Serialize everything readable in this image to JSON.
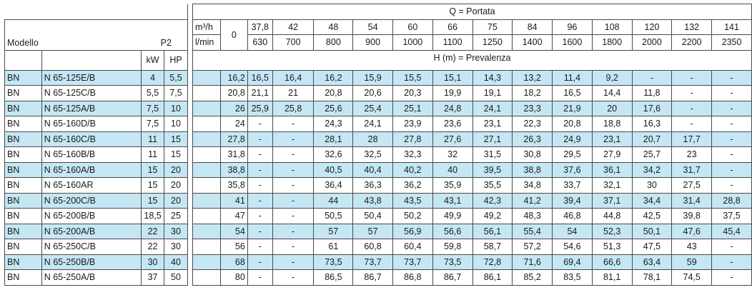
{
  "header": {
    "q_label": "Q = Portata",
    "h_label": "H (m) = Prevalenza",
    "model_label": "Modello",
    "p2_label": "P2",
    "unit_m3h": "m³/h",
    "unit_lmin": "l/min",
    "kw_label": "kW",
    "hp_label": "HP",
    "zero": "0",
    "flow_m3h": [
      "37,8",
      "42",
      "48",
      "54",
      "60",
      "66",
      "75",
      "84",
      "96",
      "108",
      "120",
      "132",
      "141"
    ],
    "flow_lmin": [
      "630",
      "700",
      "800",
      "900",
      "1000",
      "1100",
      "1250",
      "1400",
      "1600",
      "1800",
      "2000",
      "2200",
      "2350"
    ]
  },
  "rows": [
    {
      "series": "BN",
      "model": "N 65-125E/B",
      "kw": "4",
      "hp": "5,5",
      "h0": "16,2",
      "h": [
        "16,5",
        "16,4",
        "16,2",
        "15,9",
        "15,5",
        "15,1",
        "14,3",
        "13,2",
        "11,4",
        "9,2",
        "-",
        "-",
        "-"
      ]
    },
    {
      "series": "BN",
      "model": "N 65-125C/B",
      "kw": "5,5",
      "hp": "7,5",
      "h0": "20,8",
      "h": [
        "21,1",
        "21",
        "20,8",
        "20,6",
        "20,3",
        "19,9",
        "19,1",
        "18,2",
        "16,5",
        "14,4",
        "11,8",
        "-",
        "-"
      ]
    },
    {
      "series": "BN",
      "model": "N 65-125A/B",
      "kw": "7,5",
      "hp": "10",
      "h0": "26",
      "h": [
        "25,9",
        "25,8",
        "25,6",
        "25,4",
        "25,1",
        "24,8",
        "24,1",
        "23,3",
        "21,9",
        "20",
        "17,6",
        "-",
        "-"
      ]
    },
    {
      "series": "BN",
      "model": "N 65-160D/B",
      "kw": "7,5",
      "hp": "10",
      "h0": "24",
      "h": [
        "-",
        "-",
        "24,3",
        "24,1",
        "23,9",
        "23,6",
        "23,1",
        "22,3",
        "20,8",
        "18,8",
        "16,3",
        "-",
        "-"
      ]
    },
    {
      "series": "BN",
      "model": "N 65-160C/B",
      "kw": "11",
      "hp": "15",
      "h0": "27,8",
      "h": [
        "-",
        "-",
        "28,1",
        "28",
        "27,8",
        "27,6",
        "27,1",
        "26,3",
        "24,9",
        "23,1",
        "20,7",
        "17,7",
        "-"
      ]
    },
    {
      "series": "BN",
      "model": "N 65-160B/B",
      "kw": "11",
      "hp": "15",
      "h0": "31,8",
      "h": [
        "-",
        "-",
        "32,6",
        "32,5",
        "32,3",
        "32",
        "31,5",
        "30,8",
        "29,5",
        "27,9",
        "25,7",
        "23",
        "-"
      ]
    },
    {
      "series": "BN",
      "model": "N 65-160A/B",
      "kw": "15",
      "hp": "20",
      "h0": "38,8",
      "h": [
        "-",
        "-",
        "40,5",
        "40,4",
        "40,2",
        "40",
        "39,5",
        "38,8",
        "37,6",
        "36,1",
        "34,2",
        "31,7",
        "-"
      ]
    },
    {
      "series": "BN",
      "model": "N 65-160AR",
      "kw": "15",
      "hp": "20",
      "h0": "35,8",
      "h": [
        "-",
        "-",
        "36,4",
        "36,3",
        "36,2",
        "35,9",
        "35,5",
        "34,8",
        "33,7",
        "32,1",
        "30",
        "27,5",
        "-"
      ]
    },
    {
      "series": "BN",
      "model": "N 65-200C/B",
      "kw": "15",
      "hp": "20",
      "h0": "41",
      "h": [
        "-",
        "-",
        "44",
        "43,8",
        "43,5",
        "43,1",
        "42,3",
        "41,2",
        "39,4",
        "37,1",
        "34,4",
        "31,4",
        "28,8"
      ]
    },
    {
      "series": "BN",
      "model": "N 65-200B/B",
      "kw": "18,5",
      "hp": "25",
      "h0": "47",
      "h": [
        "-",
        "-",
        "50,5",
        "50,4",
        "50,2",
        "49,9",
        "49,2",
        "48,3",
        "46,8",
        "44,8",
        "42,5",
        "39,8",
        "37,5"
      ]
    },
    {
      "series": "BN",
      "model": "N 65-200A/B",
      "kw": "22",
      "hp": "30",
      "h0": "54",
      "h": [
        "-",
        "-",
        "57",
        "57",
        "56,9",
        "56,6",
        "56,1",
        "55,4",
        "54",
        "52,3",
        "50,1",
        "47,6",
        "45,4"
      ]
    },
    {
      "series": "BN",
      "model": "N 65-250C/B",
      "kw": "22",
      "hp": "30",
      "h0": "56",
      "h": [
        "-",
        "-",
        "61",
        "60,8",
        "60,4",
        "59,8",
        "58,7",
        "57,2",
        "54,6",
        "51,3",
        "47,5",
        "43",
        "-"
      ]
    },
    {
      "series": "BN",
      "model": "N 65-250B/B",
      "kw": "30",
      "hp": "40",
      "h0": "68",
      "h": [
        "-",
        "-",
        "73,5",
        "73,7",
        "73,7",
        "73,5",
        "72,8",
        "71,6",
        "69,4",
        "66,6",
        "63,4",
        "59",
        "-"
      ]
    },
    {
      "series": "BN",
      "model": "N 65-250A/B",
      "kw": "37",
      "hp": "50",
      "h0": "80",
      "h": [
        "-",
        "-",
        "86,5",
        "86,7",
        "86,8",
        "86,7",
        "86,1",
        "85,2",
        "83,5",
        "81,1",
        "78,1",
        "74,5",
        "-"
      ]
    }
  ]
}
